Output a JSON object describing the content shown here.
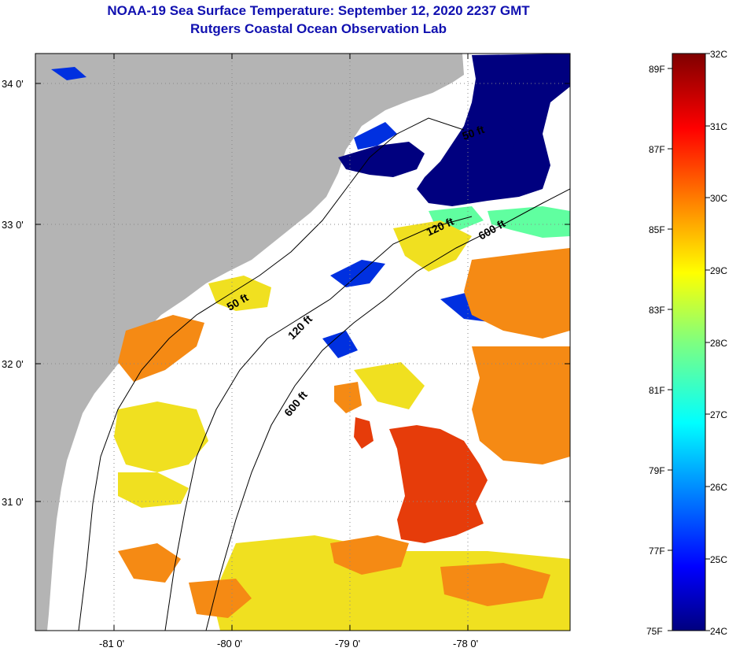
{
  "header": {
    "title": "NOAA-19 Sea Surface Temperature:  September 12, 2020 2237 GMT",
    "subtitle": "Rutgers Coastal Ocean Observation Lab"
  },
  "map": {
    "lat_labels": [
      "34 0'",
      "33 0'",
      "32 0'",
      "31 0'"
    ],
    "lon_labels": [
      "-81 0'",
      "-80 0'",
      "-79 0'",
      "-78 0'"
    ],
    "contour_labels": [
      "50 ft",
      "50 ft",
      "120 ft",
      "120 ft",
      "600 ft",
      "600 ft"
    ],
    "colors": {
      "land": "#b4b4b4",
      "cloud": "#ffffff",
      "cold": "#00008c",
      "warm": "#e63c0a"
    }
  },
  "colorbar": {
    "celsius_labels": [
      "32C",
      "31C",
      "30C",
      "29C",
      "28C",
      "27C",
      "26C",
      "25C",
      "24C"
    ],
    "fahrenheit_labels": [
      "89F",
      "87F",
      "85F",
      "83F",
      "81F",
      "79F",
      "77F",
      "75F"
    ],
    "colormap": "jet"
  }
}
